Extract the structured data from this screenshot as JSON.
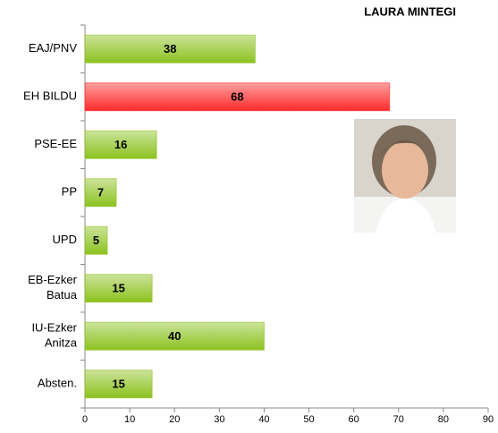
{
  "chart_data": {
    "type": "barh",
    "title": "LAURA MINTEGI",
    "categories": [
      "EAJ/PNV",
      "EH BILDU",
      "PSE-EE",
      "PP",
      "UPD",
      "EB-Ezker\nBatua",
      "IU-Ezker\nAnitza",
      "Absten."
    ],
    "values": [
      38,
      68,
      16,
      7,
      5,
      15,
      40,
      15
    ],
    "colors": [
      "#8cc21f",
      "#ff2a2a",
      "#8cc21f",
      "#8cc21f",
      "#8cc21f",
      "#8cc21f",
      "#8cc21f",
      "#8cc21f"
    ],
    "xlim": [
      0,
      90
    ],
    "xticks": [
      0,
      10,
      20,
      30,
      40,
      50,
      60,
      70,
      80,
      90
    ]
  }
}
